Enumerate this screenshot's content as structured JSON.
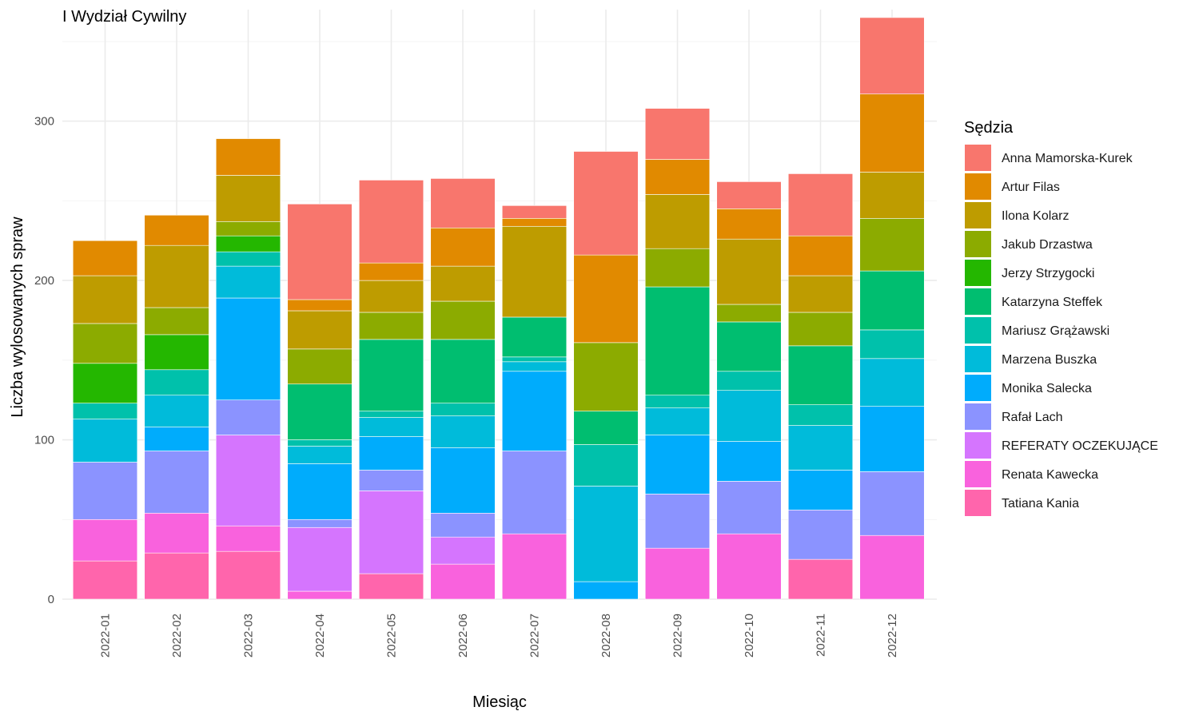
{
  "chart_data": {
    "type": "bar",
    "stacked": true,
    "title": "I Wydział Cywilny",
    "xlabel": "Miesiąc",
    "ylabel": "Liczba wylosowanych spraw",
    "ylim": [
      0,
      370
    ],
    "y_ticks": [
      0,
      100,
      200,
      300
    ],
    "grid": true,
    "legend_title": "Sędzia",
    "legend_position": "right",
    "categories": [
      "2022-01",
      "2022-02",
      "2022-03",
      "2022-04",
      "2022-05",
      "2022-06",
      "2022-07",
      "2022-08",
      "2022-09",
      "2022-10",
      "2022-11",
      "2022-12"
    ],
    "series": [
      {
        "name": "Anna Mamorska-Kurek",
        "color": "#F8766D",
        "values": [
          0,
          0,
          0,
          60,
          52,
          31,
          8,
          65,
          32,
          17,
          39,
          48
        ]
      },
      {
        "name": "Artur Filas",
        "color": "#E18A00",
        "values": [
          22,
          19,
          23,
          7,
          11,
          24,
          5,
          55,
          22,
          19,
          25,
          49
        ]
      },
      {
        "name": "Ilona Kolarz",
        "color": "#BE9C00",
        "values": [
          30,
          39,
          29,
          24,
          20,
          22,
          57,
          0,
          34,
          41,
          23,
          29
        ]
      },
      {
        "name": "Jakub Drzastwa",
        "color": "#8CAB00",
        "values": [
          25,
          17,
          9,
          22,
          17,
          24,
          0,
          43,
          24,
          11,
          21,
          33
        ]
      },
      {
        "name": "Jerzy Strzygocki",
        "color": "#24B700",
        "values": [
          25,
          22,
          10,
          0,
          0,
          0,
          0,
          0,
          0,
          0,
          0,
          0
        ]
      },
      {
        "name": "Katarzyna Steffek",
        "color": "#00BE70",
        "values": [
          0,
          0,
          0,
          35,
          45,
          40,
          25,
          21,
          68,
          31,
          37,
          37
        ]
      },
      {
        "name": "Mariusz Grążawski",
        "color": "#00C1AB",
        "values": [
          10,
          16,
          9,
          4,
          4,
          8,
          3,
          26,
          8,
          12,
          13,
          18
        ]
      },
      {
        "name": "Marzena Buszka",
        "color": "#00BBDA",
        "values": [
          27,
          20,
          20,
          11,
          12,
          20,
          6,
          60,
          17,
          32,
          28,
          30
        ]
      },
      {
        "name": "Monika Salecka",
        "color": "#00ACFC",
        "values": [
          0,
          15,
          64,
          35,
          21,
          41,
          50,
          11,
          37,
          25,
          25,
          41
        ]
      },
      {
        "name": "Rafał Lach",
        "color": "#8B93FF",
        "values": [
          36,
          39,
          22,
          5,
          13,
          15,
          52,
          0,
          34,
          33,
          31,
          40
        ]
      },
      {
        "name": "REFERATY OCZEKUJĄCE",
        "color": "#D575FE",
        "values": [
          0,
          0,
          57,
          40,
          52,
          17,
          0,
          0,
          0,
          0,
          0,
          0
        ]
      },
      {
        "name": "Renata Kawecka",
        "color": "#F962DD",
        "values": [
          26,
          25,
          16,
          5,
          0,
          22,
          41,
          0,
          32,
          41,
          0,
          40
        ]
      },
      {
        "name": "Tatiana Kania",
        "color": "#FF65AC",
        "values": [
          24,
          29,
          30,
          0,
          16,
          0,
          0,
          0,
          0,
          0,
          25,
          0
        ]
      }
    ]
  }
}
